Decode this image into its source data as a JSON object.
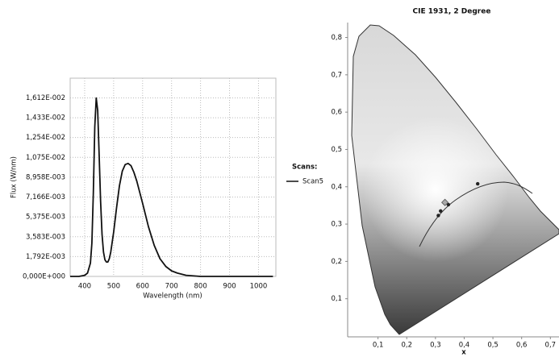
{
  "chart_data": [
    {
      "type": "line",
      "x_label": "Wavelength (nm)",
      "y_label": "Flux (W/nm)",
      "legend_title": "Scans:",
      "x": [
        350,
        380,
        400,
        410,
        420,
        425,
        430,
        435,
        440,
        445,
        450,
        455,
        460,
        465,
        470,
        475,
        480,
        485,
        490,
        500,
        510,
        520,
        530,
        540,
        550,
        560,
        570,
        580,
        600,
        620,
        640,
        660,
        680,
        700,
        720,
        750,
        800,
        900,
        1000,
        1050
      ],
      "series": [
        {
          "name": "Scan5",
          "color": "#111111",
          "values": [
            0.0,
            0.0,
            0.0001,
            0.0003,
            0.0012,
            0.003,
            0.0075,
            0.0135,
            0.0161,
            0.015,
            0.011,
            0.0068,
            0.0038,
            0.0022,
            0.0015,
            0.0013,
            0.0013,
            0.0016,
            0.0022,
            0.004,
            0.0062,
            0.0082,
            0.0095,
            0.0101,
            0.0102,
            0.01,
            0.0094,
            0.0086,
            0.0066,
            0.0045,
            0.0028,
            0.0016,
            0.0009,
            0.0005,
            0.0003,
            0.0001,
            0.0,
            0.0,
            0.0,
            0.0
          ]
        }
      ],
      "xlim": [
        350,
        1060
      ],
      "xticks": [
        400,
        500,
        600,
        700,
        800,
        900,
        1000
      ],
      "ylim": [
        0,
        0.0179
      ],
      "yticks": [
        {
          "value": 0,
          "label": "0,000E+000"
        },
        {
          "value": 0.001792,
          "label": "1,792E-003"
        },
        {
          "value": 0.003583,
          "label": "3,583E-003"
        },
        {
          "value": 0.005375,
          "label": "5,375E-003"
        },
        {
          "value": 0.007166,
          "label": "7,166E-003"
        },
        {
          "value": 0.008958,
          "label": "8,958E-003"
        },
        {
          "value": 0.01075,
          "label": "1,075E-002"
        },
        {
          "value": 0.01254,
          "label": "1,254E-002"
        },
        {
          "value": 0.01433,
          "label": "1,433E-002"
        },
        {
          "value": 0.01612,
          "label": "1,612E-002"
        }
      ],
      "grid": true
    },
    {
      "type": "scatter",
      "title": "CIE 1931, 2 Degree",
      "x_label": "x",
      "series": [
        {
          "color": "#222222",
          "marker": "circle",
          "x": [
            0.31,
            0.318,
            0.345,
            0.447
          ],
          "values": [
            0.323,
            0.335,
            0.352,
            0.408
          ]
        },
        {
          "color": "#aaaaaa",
          "marker": "diamond",
          "x": [
            0.333
          ],
          "values": [
            0.358
          ]
        }
      ],
      "xlim": [
        0,
        0.73
      ],
      "xticks": [
        {
          "value": 0.1,
          "label": "0,1"
        },
        {
          "value": 0.2,
          "label": "0,2"
        },
        {
          "value": 0.3,
          "label": "0,3"
        },
        {
          "value": 0.4,
          "label": "0,4"
        },
        {
          "value": 0.5,
          "label": "0,5"
        },
        {
          "value": 0.6,
          "label": "0,6"
        },
        {
          "value": 0.7,
          "label": "0,7"
        }
      ],
      "ylim": [
        0,
        0.84
      ],
      "yticks": [
        {
          "value": 0.1,
          "label": "0,1"
        },
        {
          "value": 0.2,
          "label": "0,2"
        },
        {
          "value": 0.3,
          "label": "0,3"
        },
        {
          "value": 0.4,
          "label": "0,4"
        },
        {
          "value": 0.5,
          "label": "0,5"
        },
        {
          "value": 0.6,
          "label": "0,6"
        },
        {
          "value": 0.7,
          "label": "0,7"
        },
        {
          "value": 0.8,
          "label": "0,8"
        }
      ],
      "grid": false
    }
  ]
}
